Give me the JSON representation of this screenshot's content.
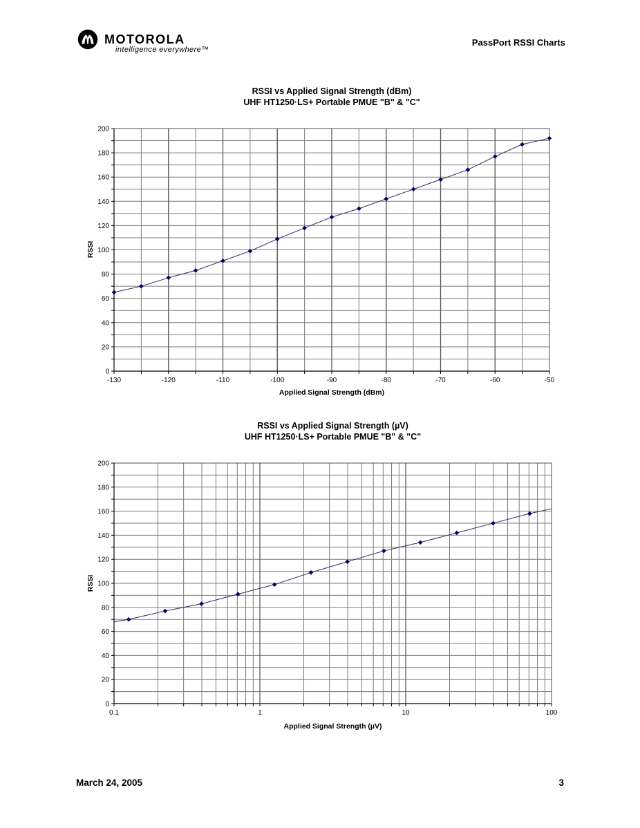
{
  "header": {
    "brand": "MOTOROLA",
    "tagline": "intelligence everywhere™",
    "doc_title": "PassPort RSSI Charts",
    "logo_icon": "motorola-batwing-logo"
  },
  "footer": {
    "date": "March 24, 2005",
    "page_number": "3"
  },
  "colors": {
    "line": "#3c3c6e",
    "marker": "#000066",
    "grid_minor": "#7a7a7a",
    "grid_major": "#5a5a5a",
    "border": "#4d4d4d",
    "axis": "#000000",
    "text": "#000000",
    "background": "#ffffff"
  },
  "chart_data": [
    {
      "type": "line",
      "title": "RSSI vs Applied Signal Strength (dBm)",
      "subtitle": "UHF HT1250·LS+ Portable PMUE \"B\" & \"C\"",
      "xlabel": "Applied Signal Strength (dBm)",
      "ylabel": "RSSI",
      "x_scale": "linear",
      "xlim": [
        -130,
        -50
      ],
      "ylim": [
        0,
        200
      ],
      "grid": true,
      "legend": false,
      "x_tick_values": [
        -130,
        -120,
        -110,
        -100,
        -90,
        -80,
        -70,
        -60,
        -50
      ],
      "x_tick_labels": [
        "-130",
        "-120",
        "-110",
        "-100",
        "-90",
        "-80",
        "-70",
        "-60",
        "-50"
      ],
      "y_tick_values": [
        0,
        20,
        40,
        60,
        80,
        100,
        120,
        140,
        160,
        180,
        200
      ],
      "y_tick_labels": [
        "0",
        "20",
        "40",
        "60",
        "80",
        "100",
        "120",
        "140",
        "160",
        "180",
        "200"
      ],
      "x_minor_tick_values": [
        -130,
        -125,
        -120,
        -115,
        -110,
        -105,
        -100,
        -95,
        -90,
        -85,
        -80,
        -75,
        -70,
        -65,
        -60,
        -55,
        -50
      ],
      "y_minor_tick_values": [
        0,
        10,
        20,
        30,
        40,
        50,
        60,
        70,
        80,
        90,
        100,
        110,
        120,
        130,
        140,
        150,
        160,
        170,
        180,
        190,
        200
      ],
      "x_gridline_values": [
        -125,
        -120,
        -115,
        -110,
        -105,
        -100,
        -95,
        -90,
        -85,
        -80,
        -75,
        -70,
        -65,
        -60,
        -55
      ],
      "x_major_gridline_values": [
        -120,
        -110,
        -100,
        -90,
        -80,
        -70,
        -60
      ],
      "y_gridline_values": [
        10,
        20,
        30,
        40,
        50,
        60,
        70,
        80,
        90,
        100,
        110,
        120,
        130,
        140,
        150,
        160,
        170,
        180,
        190
      ],
      "line": {
        "x": [
          -130,
          -125,
          -120,
          -115,
          -110,
          -105,
          -100,
          -95,
          -90,
          -85,
          -80,
          -75,
          -70,
          -65,
          -60,
          -55,
          -50
        ],
        "y": [
          65,
          70,
          77,
          83,
          91,
          99,
          109,
          118,
          127,
          134,
          142,
          150,
          158,
          166,
          177,
          187,
          192
        ]
      },
      "markers": {
        "x": [
          -130,
          -125,
          -120,
          -115,
          -110,
          -105,
          -100,
          -95,
          -90,
          -85,
          -80,
          -75,
          -70,
          -65,
          -60,
          -55,
          -50
        ],
        "y": [
          65,
          70,
          77,
          83,
          91,
          99,
          109,
          118,
          127,
          134,
          142,
          150,
          158,
          166,
          177,
          187,
          192
        ]
      }
    },
    {
      "type": "line",
      "title": "RSSI vs Applied Signal Strength (µV)",
      "subtitle": "UHF HT1250·LS+ Portable PMUE \"B\" & \"C\"",
      "xlabel": "Applied Signal Strength (µV)",
      "ylabel": "RSSI",
      "x_scale": "log",
      "xlim": [
        0.1,
        100
      ],
      "ylim": [
        0,
        200
      ],
      "grid": true,
      "legend": false,
      "x_tick_values": [
        0.1,
        1,
        10,
        100
      ],
      "x_tick_labels": [
        "0.1",
        "1",
        "10",
        "100"
      ],
      "y_tick_values": [
        0,
        20,
        40,
        60,
        80,
        100,
        120,
        140,
        160,
        180,
        200
      ],
      "y_tick_labels": [
        "0",
        "20",
        "40",
        "60",
        "80",
        "100",
        "120",
        "140",
        "160",
        "180",
        "200"
      ],
      "x_minor_tick_values": [
        0.1,
        0.2,
        0.3,
        0.4,
        0.5,
        0.6,
        0.7,
        0.8,
        0.9,
        1,
        2,
        3,
        4,
        5,
        6,
        7,
        8,
        9,
        10,
        20,
        30,
        40,
        50,
        60,
        70,
        80,
        90,
        100
      ],
      "y_minor_tick_values": [
        0,
        10,
        20,
        30,
        40,
        50,
        60,
        70,
        80,
        90,
        100,
        110,
        120,
        130,
        140,
        150,
        160,
        170,
        180,
        190,
        200
      ],
      "x_gridline_values": [
        0.2,
        0.3,
        0.4,
        0.5,
        0.6,
        0.7,
        0.8,
        0.9,
        1,
        2,
        3,
        4,
        5,
        6,
        7,
        8,
        9,
        10,
        20,
        30,
        40,
        50,
        60,
        70,
        80,
        90
      ],
      "x_major_gridline_values": [
        1,
        10
      ],
      "y_gridline_values": [
        10,
        20,
        30,
        40,
        50,
        60,
        70,
        80,
        90,
        100,
        110,
        120,
        130,
        140,
        150,
        160,
        170,
        180,
        190
      ],
      "line": {
        "x": [
          0.1,
          0.126,
          0.224,
          0.398,
          0.708,
          1.26,
          2.24,
          3.98,
          7.08,
          12.6,
          22.4,
          39.8,
          70.8,
          100
        ],
        "y": [
          68,
          70,
          77,
          83,
          91,
          99,
          109,
          118,
          127,
          134,
          142,
          150,
          158,
          162
        ]
      },
      "markers": {
        "x": [
          0.126,
          0.224,
          0.398,
          0.708,
          1.26,
          2.24,
          3.98,
          7.08,
          12.6,
          22.4,
          39.8,
          70.8
        ],
        "y": [
          70,
          77,
          83,
          91,
          99,
          109,
          118,
          127,
          134,
          142,
          150,
          158
        ]
      }
    }
  ]
}
